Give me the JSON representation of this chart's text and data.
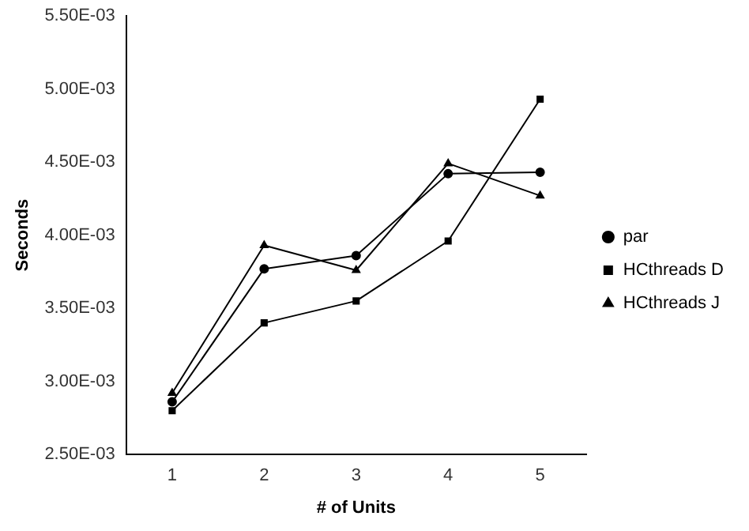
{
  "chart_data": {
    "type": "line",
    "xlabel": "# of Units",
    "ylabel": "Seconds",
    "categories": [
      "1",
      "2",
      "3",
      "4",
      "5"
    ],
    "series": [
      {
        "name": "par",
        "color": "#000000",
        "marker": "circle",
        "values": [
          0.00286,
          0.00377,
          0.00386,
          0.00442,
          0.00443
        ]
      },
      {
        "name": "HCthreads D",
        "color": "#000000",
        "marker": "square",
        "values": [
          0.0028,
          0.0034,
          0.00355,
          0.00396,
          0.00493
        ]
      },
      {
        "name": "HCthreads J",
        "color": "#000000",
        "marker": "triangle",
        "values": [
          0.00292,
          0.00393,
          0.00376,
          0.00449,
          0.00427
        ]
      }
    ],
    "ylim": [
      0.0025,
      0.0055
    ],
    "yticks": [
      {
        "value": 0.0025,
        "label": "2.50E-03"
      },
      {
        "value": 0.003,
        "label": "3.00E-03"
      },
      {
        "value": 0.0035,
        "label": "3.50E-03"
      },
      {
        "value": 0.004,
        "label": "4.00E-03"
      },
      {
        "value": 0.0045,
        "label": "4.50E-03"
      },
      {
        "value": 0.005,
        "label": "5.00E-03"
      },
      {
        "value": 0.0055,
        "label": "5.50E-03"
      }
    ],
    "grid": false,
    "legend": "right",
    "line_style": "solid"
  }
}
